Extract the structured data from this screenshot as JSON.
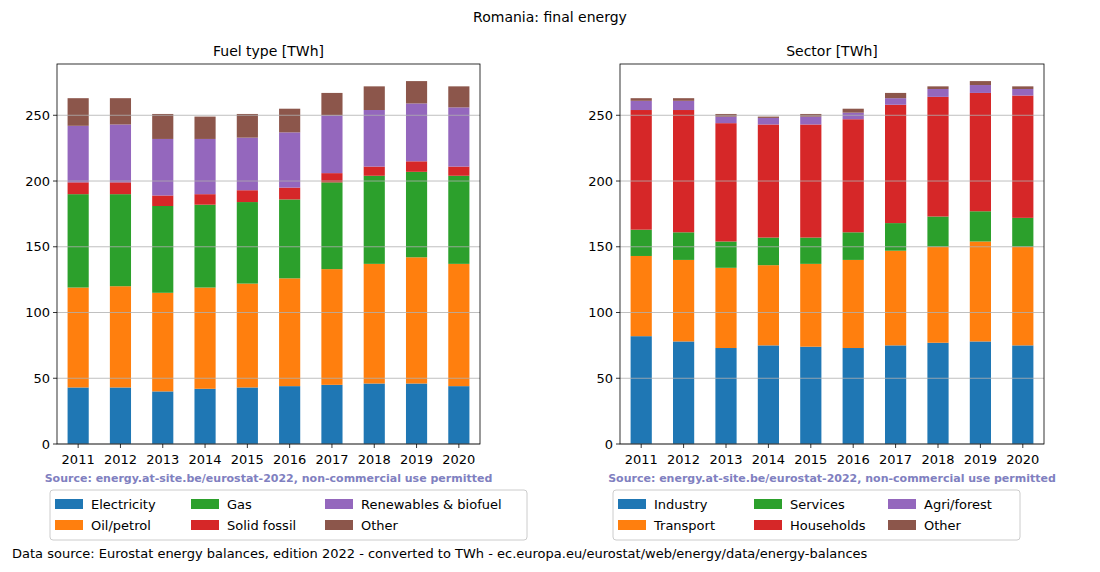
{
  "title": "Romania: final energy",
  "footer": "Data source: Eurostat energy balances, edition 2022 - converted to TWh - ec.europa.eu/eurostat/web/energy/data/energy-balances",
  "chart_data": [
    {
      "type": "bar",
      "title": "Fuel type [TWh]",
      "stacked": true,
      "grid": true,
      "legend": "bottom",
      "annotations": [
        "Source: energy.at-site.be/eurostat-2022, non-commercial use permitted"
      ],
      "categories": [
        "2011",
        "2012",
        "2013",
        "2014",
        "2015",
        "2016",
        "2017",
        "2018",
        "2019",
        "2020"
      ],
      "ylim": [
        0,
        289
      ],
      "yticks": [
        0,
        50,
        100,
        150,
        200,
        250
      ],
      "series": [
        {
          "name": "Electricity",
          "color": "#1f77b4",
          "values": [
            43,
            43,
            40,
            42,
            43,
            44,
            45,
            46,
            46,
            44
          ]
        },
        {
          "name": "Oil/petrol",
          "color": "#ff7f0e",
          "values": [
            76,
            77,
            75,
            77,
            79,
            82,
            88,
            91,
            96,
            93
          ]
        },
        {
          "name": "Gas",
          "color": "#2ca02c",
          "values": [
            71,
            70,
            66,
            63,
            62,
            60,
            66,
            67,
            65,
            67
          ]
        },
        {
          "name": "Solid fossil",
          "color": "#d62728",
          "values": [
            9,
            9,
            8,
            8,
            9,
            9,
            7,
            7,
            8,
            7
          ]
        },
        {
          "name": "Renewables & biofuel",
          "color": "#9467bd",
          "values": [
            43,
            44,
            43,
            42,
            40,
            42,
            44,
            43,
            44,
            45
          ]
        },
        {
          "name": "Other",
          "color": "#8c564b",
          "values": [
            21,
            20,
            19,
            17,
            18,
            18,
            17,
            18,
            17,
            16
          ]
        }
      ]
    },
    {
      "type": "bar",
      "title": "Sector [TWh]",
      "stacked": true,
      "grid": true,
      "legend": "bottom",
      "annotations": [
        "Source: energy.at-site.be/eurostat-2022, non-commercial use permitted"
      ],
      "categories": [
        "2011",
        "2012",
        "2013",
        "2014",
        "2015",
        "2016",
        "2017",
        "2018",
        "2019",
        "2020"
      ],
      "ylim": [
        0,
        289
      ],
      "yticks": [
        0,
        50,
        100,
        150,
        200,
        250
      ],
      "series": [
        {
          "name": "Industry",
          "color": "#1f77b4",
          "values": [
            82,
            78,
            73,
            75,
            74,
            73,
            75,
            77,
            78,
            75
          ]
        },
        {
          "name": "Transport",
          "color": "#ff7f0e",
          "values": [
            61,
            62,
            61,
            61,
            63,
            67,
            72,
            73,
            76,
            75
          ]
        },
        {
          "name": "Services",
          "color": "#2ca02c",
          "values": [
            20,
            21,
            20,
            21,
            20,
            21,
            21,
            23,
            23,
            22
          ]
        },
        {
          "name": "Households",
          "color": "#d62728",
          "values": [
            91,
            93,
            90,
            86,
            86,
            86,
            90,
            91,
            90,
            93
          ]
        },
        {
          "name": "Agri/forest",
          "color": "#9467bd",
          "values": [
            7,
            7,
            5,
            5,
            6,
            5,
            5,
            6,
            6,
            5
          ]
        },
        {
          "name": "Other",
          "color": "#8c564b",
          "values": [
            2,
            2,
            2,
            1,
            2,
            3,
            4,
            2,
            3,
            2
          ]
        }
      ]
    }
  ]
}
